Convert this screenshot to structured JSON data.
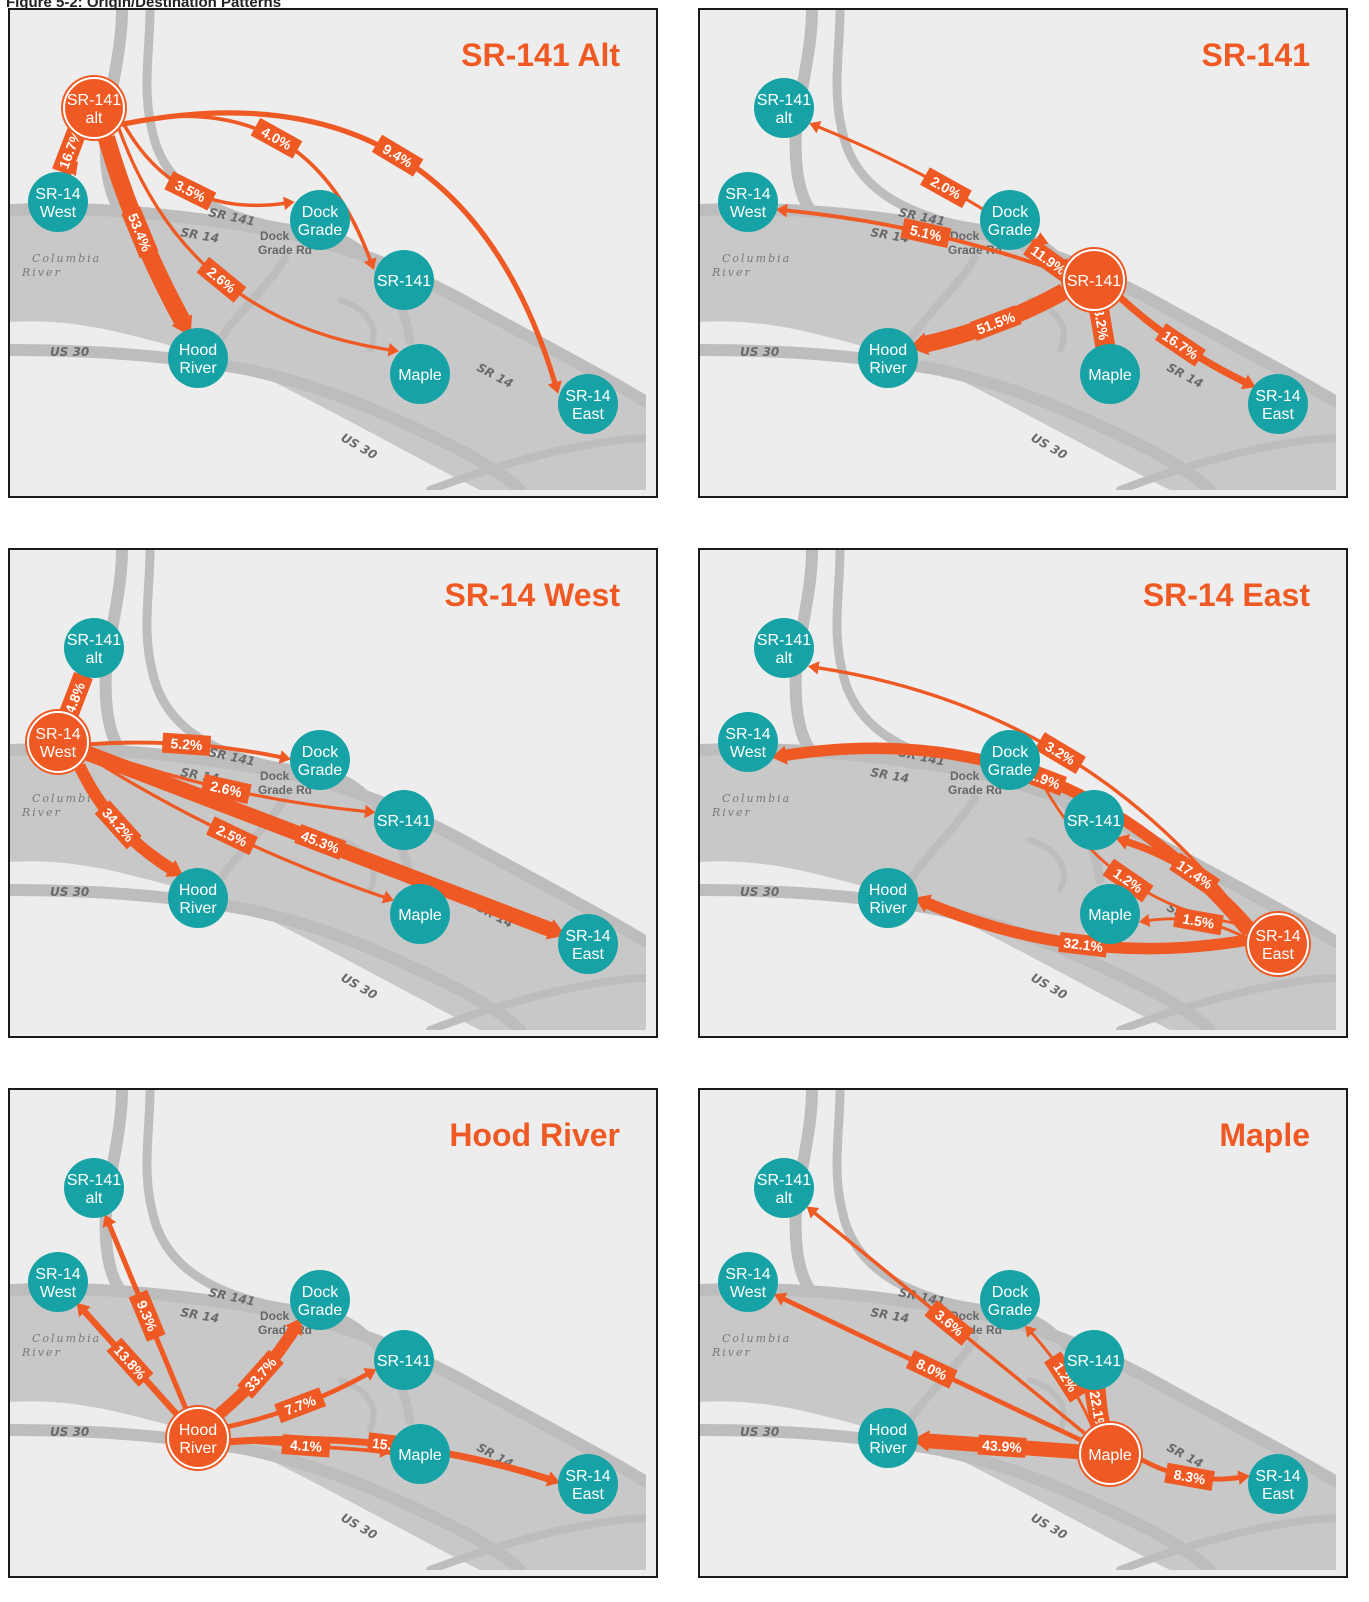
{
  "figure_caption": "Figure 5-2: Origin/Destination Patterns",
  "colors": {
    "node": "#17a3a5",
    "flow": "#ef5a24",
    "road": "#bdbdbd",
    "river": "#c8c8c8",
    "land": "#ededed"
  },
  "map_labels": {
    "sr141_road": "SR 141",
    "sr14_road_upper": "SR 14",
    "sr14_road_lower": "SR 14",
    "us30_west": "US 30",
    "us30_south": "US 30",
    "columbia_river": "Columbia River",
    "dock_grade_rd": "Dock Grade Rd"
  },
  "nodes": {
    "sr141alt": "SR-141 alt",
    "sr14west": "SR-14 West",
    "dockgrade": "Dock Grade",
    "sr141": "SR-141",
    "hoodriver": "Hood River",
    "maple": "Maple",
    "sr14east": "SR-14 East"
  },
  "panels": [
    {
      "title": "SR-141 Alt",
      "origin": "sr141alt",
      "flows": [
        {
          "to": "sr14west",
          "pct": "16.7%",
          "weight": 16.7
        },
        {
          "to": "hoodriver",
          "pct": "53.4%",
          "weight": 53.4
        },
        {
          "to": "dockgrade",
          "pct": "3.5%",
          "weight": 3.5
        },
        {
          "to": "maple",
          "pct": "2.6%",
          "weight": 2.6
        },
        {
          "to": "sr141",
          "pct": "4.0%",
          "weight": 4.0
        },
        {
          "to": "sr14east",
          "pct": "9.4%",
          "weight": 9.4
        }
      ]
    },
    {
      "title": "SR-141",
      "origin": "sr141",
      "flows": [
        {
          "to": "sr141alt",
          "pct": "2.0%",
          "weight": 2.0
        },
        {
          "to": "sr14west",
          "pct": "5.1%",
          "weight": 5.1
        },
        {
          "to": "dockgrade",
          "pct": "11.9%",
          "weight": 11.9
        },
        {
          "to": "hoodriver",
          "pct": "51.5%",
          "weight": 51.5
        },
        {
          "to": "maple",
          "pct": "3.2%",
          "weight": 3.2
        },
        {
          "to": "sr14east",
          "pct": "16.7%",
          "weight": 16.7
        }
      ]
    },
    {
      "title": "SR-14 West",
      "origin": "sr14west",
      "flows": [
        {
          "to": "sr141alt",
          "pct": "4.8%",
          "weight": 4.8
        },
        {
          "to": "hoodriver",
          "pct": "34.2%",
          "weight": 34.2
        },
        {
          "to": "dockgrade",
          "pct": "5.2%",
          "weight": 5.2
        },
        {
          "to": "sr141",
          "pct": "2.6%",
          "weight": 2.6
        },
        {
          "to": "maple",
          "pct": "2.5%",
          "weight": 2.5
        },
        {
          "to": "sr14east",
          "pct": "45.3%",
          "weight": 45.3
        }
      ]
    },
    {
      "title": "SR-14 East",
      "origin": "sr14east",
      "flows": [
        {
          "to": "sr141alt",
          "pct": "3.2%",
          "weight": 3.2
        },
        {
          "to": "sr14west",
          "pct": "31.9%",
          "weight": 31.9
        },
        {
          "to": "dockgrade",
          "pct": "1.2%",
          "weight": 1.2
        },
        {
          "to": "sr141",
          "pct": "17.4%",
          "weight": 17.4
        },
        {
          "to": "maple",
          "pct": "1.5%",
          "weight": 1.5
        },
        {
          "to": "hoodriver",
          "pct": "32.1%",
          "weight": 32.1
        }
      ]
    },
    {
      "title": "Hood River",
      "origin": "hoodriver",
      "flows": [
        {
          "to": "sr141alt",
          "pct": "9.3%",
          "weight": 9.3
        },
        {
          "to": "sr14west",
          "pct": "13.8%",
          "weight": 13.8
        },
        {
          "to": "dockgrade",
          "pct": "33.7%",
          "weight": 33.7
        },
        {
          "to": "sr141",
          "pct": "7.7%",
          "weight": 7.7
        },
        {
          "to": "maple",
          "pct": "4.1%",
          "weight": 4.1
        },
        {
          "to": "sr14east",
          "pct": "15.8%",
          "weight": 15.8
        }
      ]
    },
    {
      "title": "Maple",
      "origin": "maple",
      "flows": [
        {
          "to": "sr141alt",
          "pct": "3.6%",
          "weight": 3.6
        },
        {
          "to": "sr14west",
          "pct": "8.0%",
          "weight": 8.0
        },
        {
          "to": "dockgrade",
          "pct": "1.2%",
          "weight": 1.2
        },
        {
          "to": "sr141",
          "pct": "22.1%",
          "weight": 22.1
        },
        {
          "to": "hoodriver",
          "pct": "43.9%",
          "weight": 43.9
        },
        {
          "to": "sr14east",
          "pct": "8.3%",
          "weight": 8.3
        }
      ]
    }
  ]
}
